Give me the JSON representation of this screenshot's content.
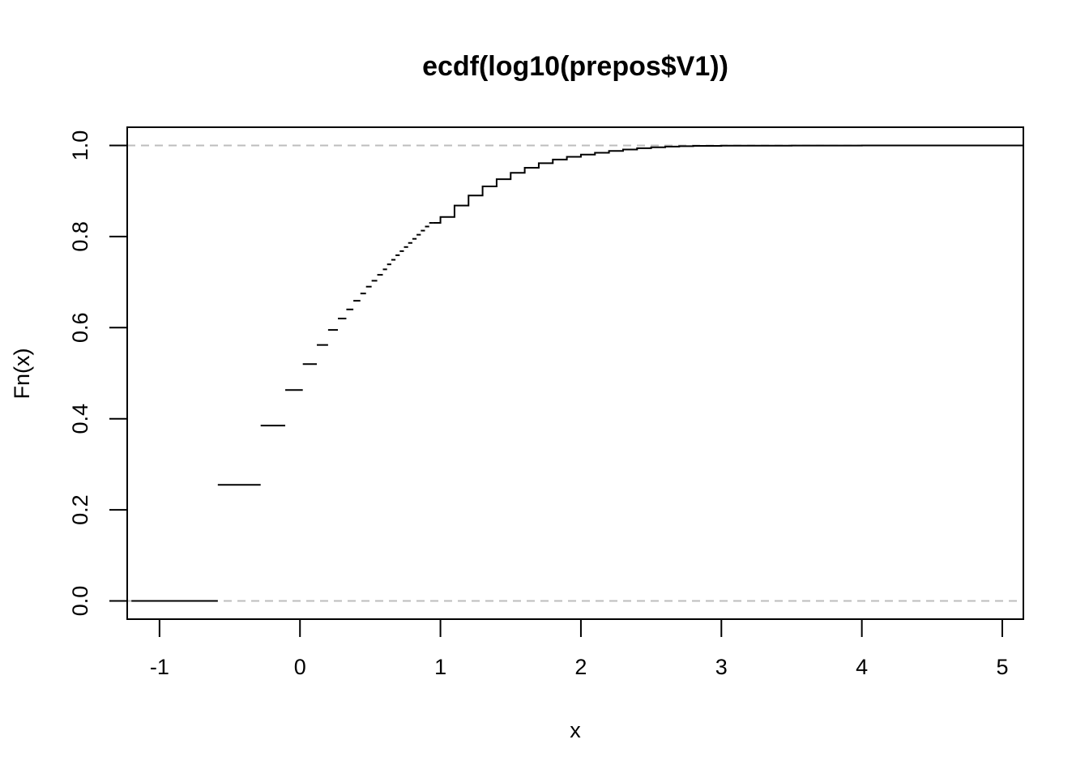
{
  "chart_data": {
    "type": "line",
    "subtype": "step",
    "title": "ecdf(log10(prepos$V1))",
    "xlabel": "x",
    "ylabel": "Fn(x)",
    "xlim": [
      -1.23,
      5.15
    ],
    "ylim": [
      -0.04,
      1.04
    ],
    "x_ticks": [
      -1,
      0,
      1,
      2,
      3,
      4,
      5
    ],
    "x_tick_labels": [
      "-1",
      "0",
      "1",
      "2",
      "3",
      "4",
      "5"
    ],
    "y_ticks": [
      0.0,
      0.2,
      0.4,
      0.6,
      0.8,
      1.0
    ],
    "y_tick_labels": [
      "0.0",
      "0.2",
      "0.4",
      "0.6",
      "0.8",
      "1.0"
    ],
    "reference_lines_y": [
      0,
      1
    ],
    "grid": false,
    "legend": "none",
    "colors": {
      "line": "#000000",
      "reference": "#bdbdbd"
    },
    "steps": [
      {
        "x0": -1.2,
        "x1": -0.585,
        "y": 0.0
      },
      {
        "x0": -0.585,
        "x1": -0.28,
        "y": 0.255
      },
      {
        "x0": -0.28,
        "x1": -0.105,
        "y": 0.385
      },
      {
        "x0": -0.105,
        "x1": 0.02,
        "y": 0.463
      },
      {
        "x0": 0.02,
        "x1": 0.12,
        "y": 0.52
      },
      {
        "x0": 0.12,
        "x1": 0.2,
        "y": 0.562
      },
      {
        "x0": 0.2,
        "x1": 0.27,
        "y": 0.595
      },
      {
        "x0": 0.27,
        "x1": 0.33,
        "y": 0.62
      },
      {
        "x0": 0.33,
        "x1": 0.38,
        "y": 0.64
      },
      {
        "x0": 0.38,
        "x1": 0.43,
        "y": 0.659
      },
      {
        "x0": 0.43,
        "x1": 0.47,
        "y": 0.675
      },
      {
        "x0": 0.47,
        "x1": 0.51,
        "y": 0.69
      },
      {
        "x0": 0.51,
        "x1": 0.55,
        "y": 0.703
      },
      {
        "x0": 0.55,
        "x1": 0.59,
        "y": 0.716
      },
      {
        "x0": 0.59,
        "x1": 0.62,
        "y": 0.728
      },
      {
        "x0": 0.62,
        "x1": 0.65,
        "y": 0.739
      },
      {
        "x0": 0.65,
        "x1": 0.68,
        "y": 0.749
      },
      {
        "x0": 0.68,
        "x1": 0.71,
        "y": 0.759
      },
      {
        "x0": 0.71,
        "x1": 0.74,
        "y": 0.768
      },
      {
        "x0": 0.74,
        "x1": 0.77,
        "y": 0.777
      },
      {
        "x0": 0.77,
        "x1": 0.8,
        "y": 0.786
      },
      {
        "x0": 0.8,
        "x1": 0.83,
        "y": 0.795
      },
      {
        "x0": 0.83,
        "x1": 0.86,
        "y": 0.804
      },
      {
        "x0": 0.86,
        "x1": 0.89,
        "y": 0.813
      },
      {
        "x0": 0.89,
        "x1": 0.92,
        "y": 0.822
      },
      {
        "x0": 0.92,
        "x1": 0.95,
        "y": 0.83
      }
    ],
    "curve": [
      [
        0.95,
        0.83
      ],
      [
        1.0,
        0.843
      ],
      [
        1.1,
        0.868
      ],
      [
        1.2,
        0.89
      ],
      [
        1.3,
        0.91
      ],
      [
        1.4,
        0.926
      ],
      [
        1.5,
        0.94
      ],
      [
        1.6,
        0.951
      ],
      [
        1.7,
        0.961
      ],
      [
        1.8,
        0.969
      ],
      [
        1.9,
        0.975
      ],
      [
        2.0,
        0.98
      ],
      [
        2.1,
        0.984
      ],
      [
        2.2,
        0.988
      ],
      [
        2.3,
        0.991
      ],
      [
        2.4,
        0.994
      ],
      [
        2.5,
        0.996
      ],
      [
        2.6,
        0.9975
      ],
      [
        2.7,
        0.9985
      ],
      [
        2.8,
        0.999
      ],
      [
        3.0,
        0.9995
      ],
      [
        3.5,
        0.9998
      ],
      [
        4.0,
        0.9999
      ],
      [
        4.5,
        1.0
      ],
      [
        5.0,
        1.0
      ],
      [
        5.15,
        1.0
      ]
    ]
  }
}
